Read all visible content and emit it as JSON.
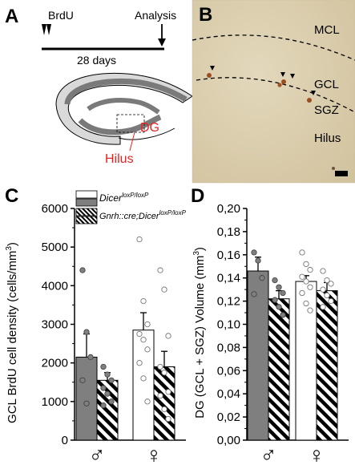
{
  "panels": {
    "A": {
      "label": "A",
      "brdu": "BrdU",
      "analysis": "Analysis",
      "duration": "28 days",
      "region_dg": "DG",
      "region_hilus": "Hilus",
      "region_color": "#e8231f"
    },
    "B": {
      "label": "B",
      "layers": [
        "MCL",
        "GCL",
        "SGZ",
        "Hilus"
      ],
      "background_color": "#dccfae"
    }
  },
  "legend": {
    "control": "Dicer",
    "control_sup": "loxP/loxP",
    "mutant_prefix": "Gnrh::cre;Dicer",
    "mutant_sup": "loxP/loxP"
  },
  "colors": {
    "male_control": "#7f7f7f",
    "female_control": "#ffffff",
    "hatch": "#000000",
    "open_dot": "#ffffff",
    "filled_dot": "#808080"
  },
  "chart_data": [
    {
      "panel": "C",
      "type": "bar",
      "ylabel": "GCL BrdU cell density (cells/mm³)",
      "ylabel_main": "GCL BrdU cell density (cells/mm",
      "ylabel_sup": "3",
      "ylabel_tail": ")",
      "ylim": [
        0,
        6000
      ],
      "yticks": [
        "0",
        "1000",
        "2000",
        "3000",
        "4000",
        "5000",
        "6000"
      ],
      "categories": [
        "♂",
        "♀"
      ],
      "series": [
        {
          "name": "Dicer loxP/loxP",
          "values": [
            2150,
            2850
          ],
          "errors": [
            600,
            450
          ]
        },
        {
          "name": "Gnrh::cre;Dicer loxP/loxP",
          "values": [
            1550,
            1900
          ],
          "errors": [
            200,
            400
          ]
        }
      ],
      "points": [
        [
          [
            4400,
            2800,
            2150,
            1550,
            950
          ],
          [
            1900,
            1700,
            1550,
            1350,
            1200,
            1000,
            900
          ]
        ],
        [
          [
            5200,
            3600,
            3000,
            2750,
            2600,
            2350,
            2000,
            1600,
            1000
          ],
          [
            4400,
            3900,
            2700,
            1900,
            1750,
            1250,
            1150,
            800,
            550
          ]
        ]
      ]
    },
    {
      "panel": "D",
      "type": "bar",
      "ylabel": "DG (GCL + SGZ) Volume (mm³)",
      "ylabel_main": "DG (GCL + SGZ) Volume (mm",
      "ylabel_sup": "3",
      "ylabel_tail": ")",
      "ylim": [
        0,
        0.2
      ],
      "yticks": [
        "0,00",
        "0,02",
        "0,04",
        "0,06",
        "0,08",
        "0,10",
        "0,12",
        "0,14",
        "0,16",
        "0,18",
        "0,20"
      ],
      "categories": [
        "♂",
        "♀"
      ],
      "series": [
        {
          "name": "Dicer loxP/loxP",
          "values": [
            0.146,
            0.137
          ],
          "errors": [
            0.012,
            0.005
          ]
        },
        {
          "name": "Gnrh::cre;Dicer loxP/loxP",
          "values": [
            0.122,
            0.129
          ],
          "errors": [
            0.007,
            0.007
          ]
        }
      ],
      "points": [
        [
          [
            0.162,
            0.155,
            0.14,
            0.126
          ],
          [
            0.138,
            0.132,
            0.127,
            0.121,
            0.115,
            0.108
          ]
        ],
        [
          [
            0.162,
            0.152,
            0.147,
            0.141,
            0.137,
            0.132,
            0.127,
            0.118,
            0.112
          ],
          [
            0.146,
            0.138,
            0.135,
            0.13,
            0.125,
            0.12,
            0.115
          ]
        ]
      ]
    }
  ]
}
